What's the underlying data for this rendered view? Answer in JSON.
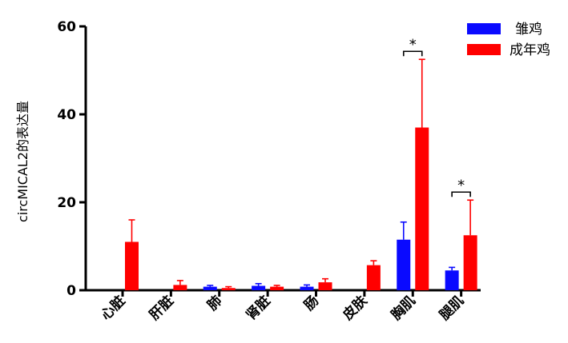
{
  "chart_data": {
    "type": "bar",
    "ylabel": "circMICAL2的表达量",
    "xlabel": "",
    "ylim": [
      0,
      60
    ],
    "yticks": [
      0,
      20,
      40,
      60
    ],
    "categories": [
      "心脏",
      "肝脏",
      "肺",
      "肾脏",
      "肠",
      "皮肤",
      "胸肌",
      "腿肌"
    ],
    "series": [
      {
        "name": "雏鸡",
        "color": "#0a0aff",
        "values": [
          0,
          0,
          0.8,
          1.0,
          0.8,
          0,
          11.5,
          4.5
        ],
        "errors": [
          0,
          0,
          0.3,
          0.5,
          0.4,
          0,
          4.0,
          0.7
        ]
      },
      {
        "name": "成年鸡",
        "color": "#ff0000",
        "values": [
          11.0,
          1.2,
          0.5,
          0.8,
          1.8,
          5.7,
          37.0,
          12.5
        ],
        "errors": [
          5.0,
          1.0,
          0.3,
          0.3,
          0.8,
          1.0,
          15.5,
          8.0
        ]
      }
    ],
    "legend_position": "top-right",
    "significance": [
      {
        "category": "胸肌",
        "label": "*"
      },
      {
        "category": "腿肌",
        "label": "*"
      }
    ]
  }
}
